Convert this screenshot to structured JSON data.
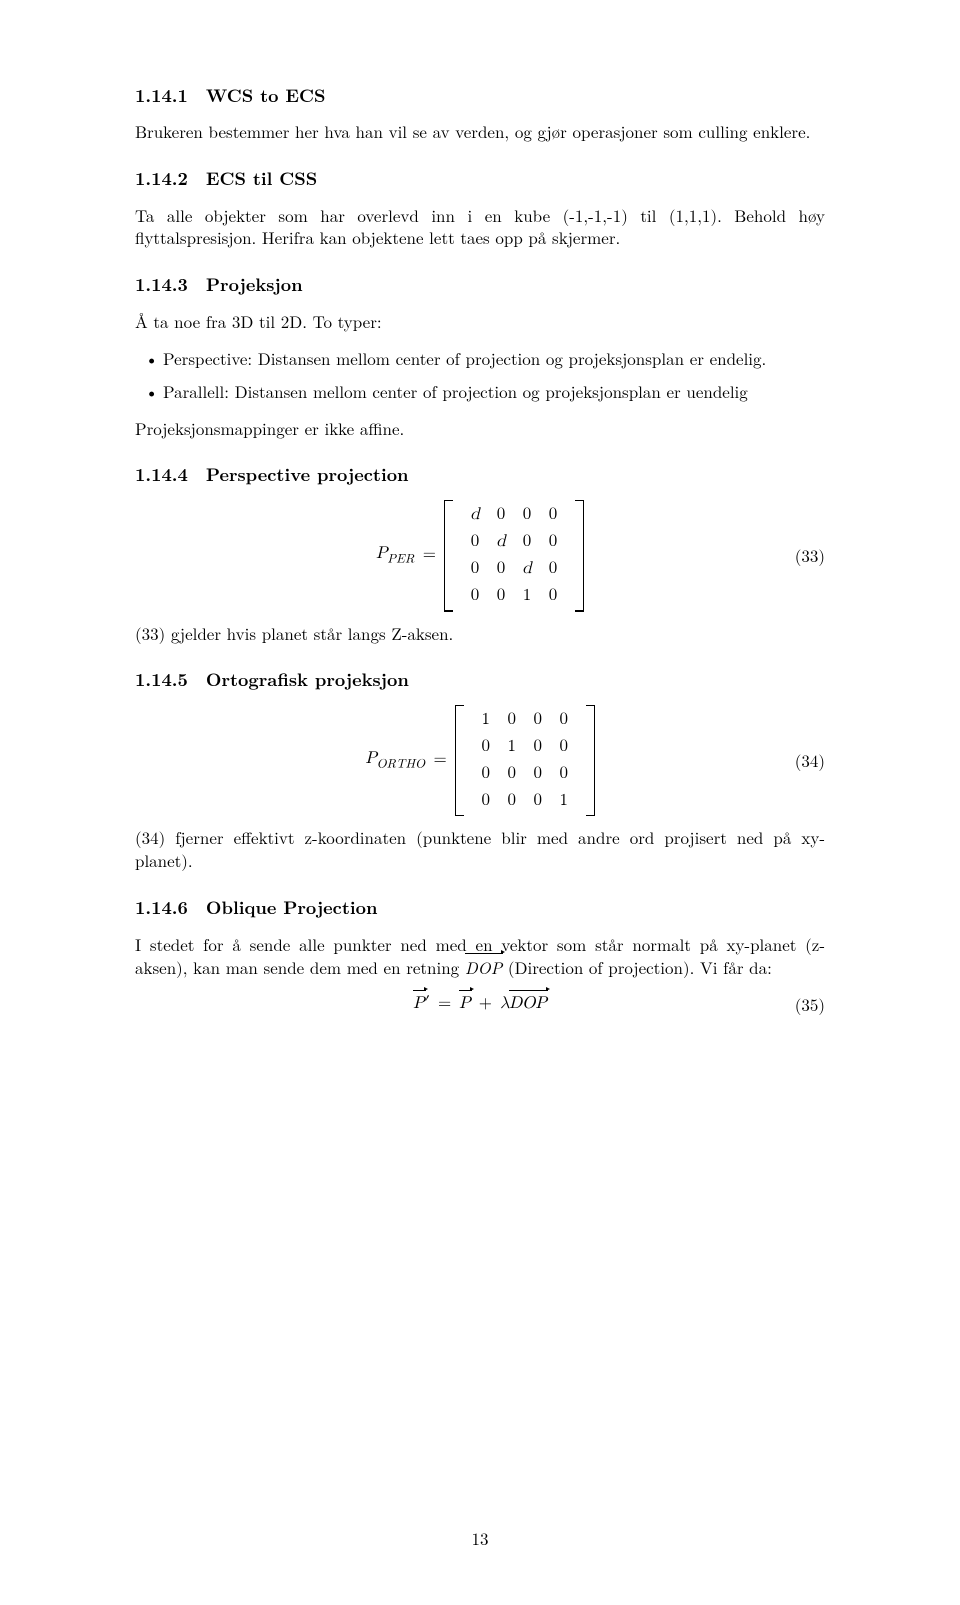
{
  "sec1": {
    "num": "1.14.1",
    "title": "WCS to ECS",
    "para": "Brukeren bestemmer her hva han vil se av verden, og gjør operasjoner som culling enklere."
  },
  "sec2": {
    "num": "1.14.2",
    "title": "ECS til CSS",
    "para": "Ta alle objekter som har overlevd inn i en kube (-1,-1,-1) til (1,1,1). Behold høy flyttalspresisjon. Herifra kan objektene lett taes opp på skjermer."
  },
  "sec3": {
    "num": "1.14.3",
    "title": "Projeksjon",
    "intro": "Å ta noe fra 3D til 2D. To typer:",
    "bullets": [
      "Perspective: Distansen mellom center of projection og projeksjonsplan er endelig.",
      "Parallell: Distansen mellom center of projection og projeksjonsplan er uendelig"
    ],
    "outro": "Projeksjonsmappinger er ikke affine."
  },
  "sec4": {
    "num": "1.14.4",
    "title": "Perspective projection",
    "eq_lhs_sym": "P",
    "eq_lhs_sub": "PER",
    "eq_eq": "=",
    "eq_num": "(33)",
    "matrix": [
      [
        "d",
        "0",
        "0",
        "0"
      ],
      [
        "0",
        "d",
        "0",
        "0"
      ],
      [
        "0",
        "0",
        "d",
        "0"
      ],
      [
        "0",
        "0",
        "1",
        "0"
      ]
    ],
    "note": "(33) gjelder hvis planet står langs Z-aksen."
  },
  "sec5": {
    "num": "1.14.5",
    "title": "Ortografisk projeksjon",
    "eq_lhs_sym": "P",
    "eq_lhs_sub": "ORTHO",
    "eq_eq": "=",
    "eq_num": "(34)",
    "matrix": [
      [
        "1",
        "0",
        "0",
        "0"
      ],
      [
        "0",
        "1",
        "0",
        "0"
      ],
      [
        "0",
        "0",
        "0",
        "0"
      ],
      [
        "0",
        "0",
        "0",
        "1"
      ]
    ],
    "note": "(34) fjerner effektivt z-koordinaten (punktene blir med andre ord projisert ned på xy-planet)."
  },
  "sec6": {
    "num": "1.14.6",
    "title": "Oblique Projection",
    "para_pre": "I stedet for å sende alle punkter ned med en vektor som står normalt på xy-planet (z-aksen), kan man sende dem med en retning ",
    "para_vec": "DOP",
    "para_post": " (Direction of projection). Vi får da:",
    "eq": {
      "p1_vec": "P",
      "prime": "′",
      "eq1": " = ",
      "p2_vec": "P",
      "plus": " + ",
      "lambda": "λ",
      "dop_vec": "DOP",
      "num": "(35)"
    }
  },
  "pagenum": "13"
}
